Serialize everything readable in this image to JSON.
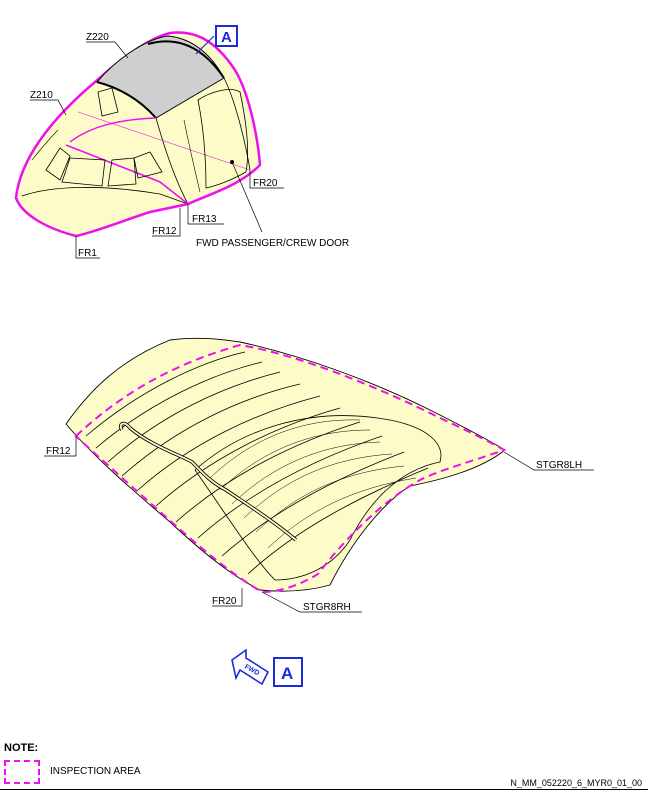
{
  "labels": {
    "z220": "Z220",
    "z210": "Z210",
    "fr1": "FR1",
    "fr12_top": "FR12",
    "fr13": "FR13",
    "fr20_top": "FR20",
    "door": "FWD PASSENGER/CREW DOOR",
    "fr12_bottom": "FR12",
    "fr20_bottom": "FR20",
    "stgr8lh": "STGR8LH",
    "stgr8rh": "STGR8RH",
    "fwd": "FWD",
    "view_a": "A",
    "view_a_arrow": "A"
  },
  "note": {
    "title": "NOTE:",
    "legend": "INSPECTION AREA"
  },
  "footer": {
    "drawing_id": "N_MM_052220_6_MYR0_01_00"
  },
  "colors": {
    "structure_fill": "#fdfcc8",
    "zone_highlight": "#ee10ee",
    "selected_panel": "#cfcfcf",
    "callout_blue": "#1b2bd6"
  }
}
